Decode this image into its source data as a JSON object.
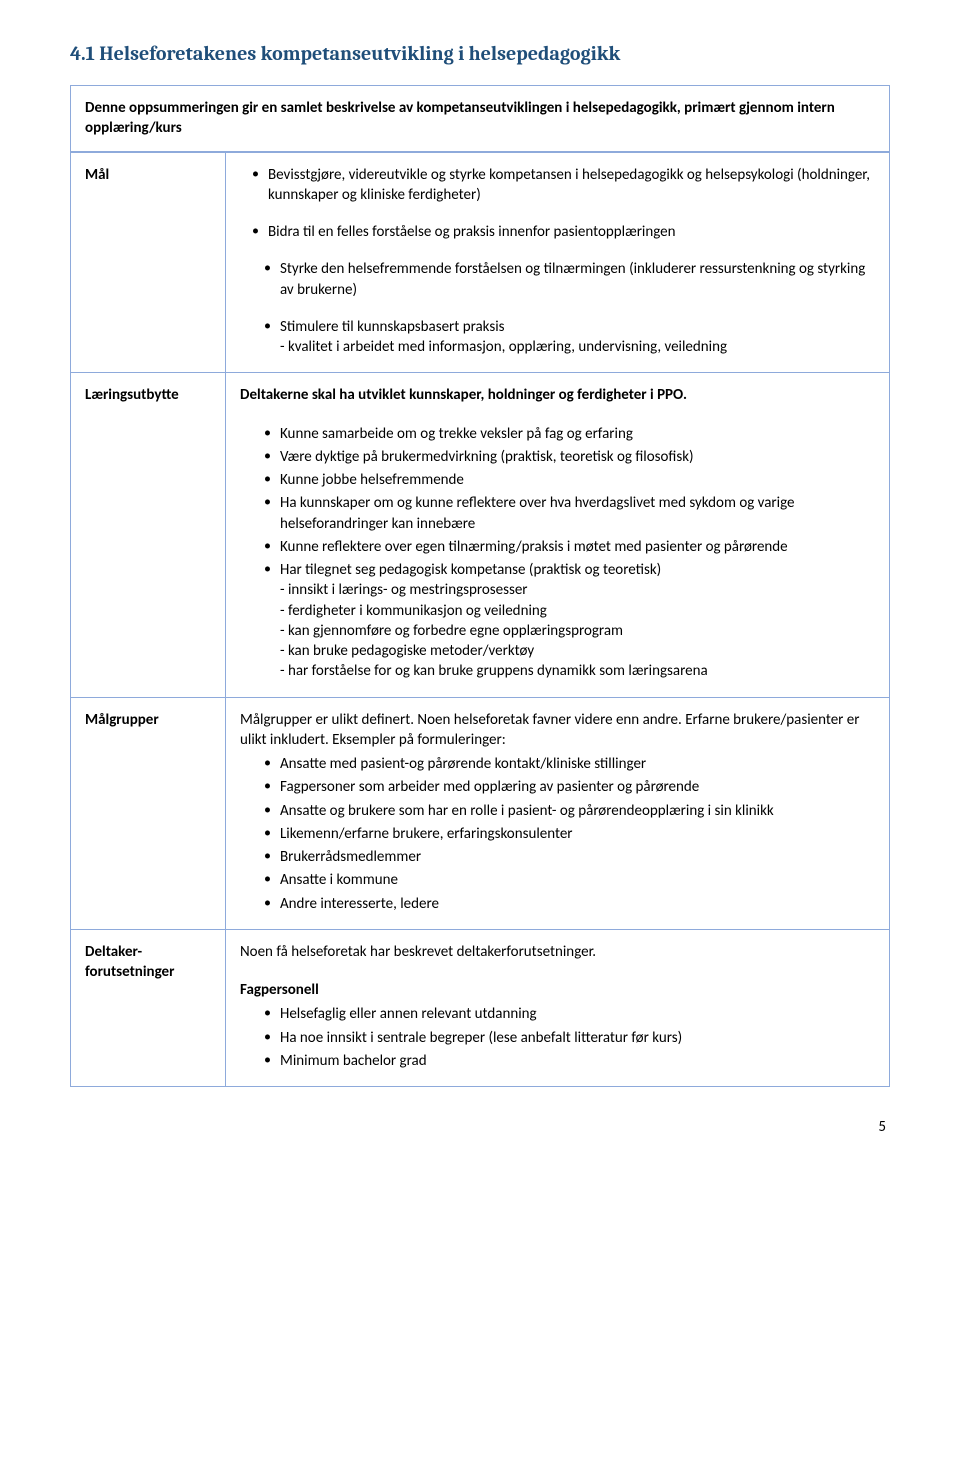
{
  "heading": "4.1 Helseforetakenes kompetanseutvikling i helsepedagogikk",
  "intro": "Denne oppsummeringen gir en samlet beskrivelse av kompetanseutviklingen i helsepedagogikk, primært gjennom intern opplæring/kurs",
  "rows": {
    "mal": {
      "label": "Mål",
      "b1": "Bevisstgjøre, videreutvikle og styrke kompetansen i helsepedagogikk og helsepsykologi (holdninger, kunnskaper og kliniske ferdigheter)",
      "b2": "Bidra til en felles forståelse og praksis innenfor pasientopplæringen",
      "b3": "Styrke den helsefremmende forståelsen og tilnærmingen (inkluderer ressurstenkning og styrking av brukerne)",
      "b4a": "Stimulere til kunnskapsbasert praksis",
      "b4b": "- kvalitet i arbeidet med informasjon, opplæring, undervisning, veiledning"
    },
    "laering": {
      "label": "Læringsutbytte",
      "lead": "Deltakerne skal ha utviklet kunnskaper, holdninger og ferdigheter i PPO.",
      "b1": "Kunne samarbeide om og trekke veksler på fag og erfaring",
      "b2": "Være dyktige på brukermedvirkning (praktisk, teoretisk og filosofisk)",
      "b3": "Kunne jobbe helsefremmende",
      "b4": "Ha kunnskaper om og kunne reflektere over hva hverdagslivet med sykdom og varige helseforandringer kan innebære",
      "b5": "Kunne reflektere over egen tilnærming/praksis i møtet med pasienter og pårørende",
      "b6": "Har tilegnet seg pedagogisk kompetanse (praktisk og teoretisk)",
      "b6a": "- innsikt i lærings- og mestringsprosesser",
      "b6b": "- ferdigheter i kommunikasjon og veiledning",
      "b6c": "- kan gjennomføre og forbedre egne opplæringsprogram",
      "b6d": "- kan bruke pedagogiske metoder/verktøy",
      "b6e": "- har forståelse for og kan bruke gruppens dynamikk som læringsarena"
    },
    "malgrupper": {
      "label": "Målgrupper",
      "lead": "Målgrupper er ulikt definert. Noen helseforetak favner videre enn andre. Erfarne brukere/pasienter er ulikt inkludert. Eksempler på formuleringer:",
      "b1": "Ansatte med pasient-og pårørende kontakt/kliniske stillinger",
      "b2": "Fagpersoner som arbeider med opplæring av pasienter og pårørende",
      "b3": "Ansatte og brukere som har en rolle i pasient- og pårørendeopplæring i sin klinikk",
      "b4": "Likemenn/erfarne brukere, erfaringskonsulenter",
      "b5": "Brukerrådsmedlemmer",
      "b6": "Ansatte i kommune",
      "b7": "Andre interesserte, ledere"
    },
    "deltaker": {
      "label": "Deltaker-forutsetninger",
      "lead": "Noen få helseforetak har beskrevet deltakerforutsetninger.",
      "subhead": "Fagpersonell",
      "b1": "Helsefaglig eller annen relevant utdanning",
      "b2": "Ha noe innsikt i sentrale begreper (lese anbefalt litteratur før kurs)",
      "b3": "Minimum bachelor grad"
    }
  },
  "page_number": "5"
}
